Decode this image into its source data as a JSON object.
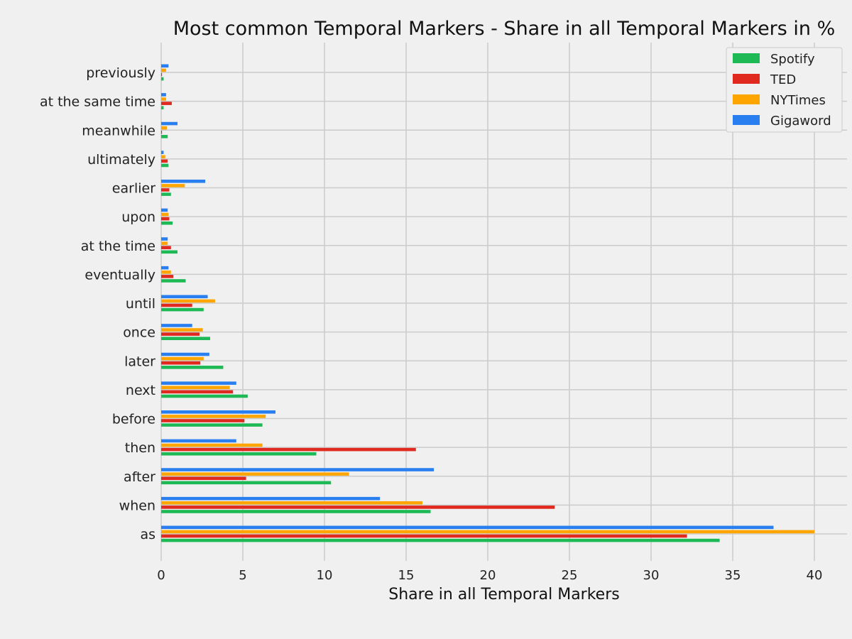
{
  "chart_data": {
    "type": "bar",
    "orientation": "horizontal",
    "title": "Most common Temporal Markers - Share in all Temporal Markers in %",
    "xlabel": "Share in all Temporal Markers",
    "ylabel": "",
    "xlim": [
      0,
      42
    ],
    "xticks": [
      0,
      5,
      10,
      15,
      20,
      25,
      30,
      35,
      40
    ],
    "grid": true,
    "legend_position": "top-right",
    "categories": [
      "as",
      "when",
      "after",
      "then",
      "before",
      "next",
      "later",
      "once",
      "until",
      "eventually",
      "at the time",
      "upon",
      "earlier",
      "ultimately",
      "meanwhile",
      "at the same time",
      "previously"
    ],
    "series": [
      {
        "name": "Spotify",
        "color": "#1db954",
        "values": [
          34.2,
          16.5,
          10.4,
          9.5,
          6.2,
          5.3,
          3.8,
          3.0,
          2.6,
          1.5,
          1.0,
          0.7,
          0.6,
          0.45,
          0.4,
          0.15,
          0.15
        ]
      },
      {
        "name": "TED",
        "color": "#e0291f",
        "values": [
          32.2,
          24.1,
          5.2,
          15.6,
          5.1,
          4.4,
          2.4,
          2.35,
          1.9,
          0.75,
          0.6,
          0.5,
          0.5,
          0.4,
          0.05,
          0.65,
          0.05
        ]
      },
      {
        "name": "NYTimes",
        "color": "#ffa500",
        "values": [
          40.0,
          16.0,
          11.5,
          6.2,
          6.4,
          4.2,
          2.6,
          2.55,
          3.3,
          0.6,
          0.4,
          0.45,
          1.45,
          0.25,
          0.35,
          0.3,
          0.3
        ]
      },
      {
        "name": "Gigaword",
        "color": "#2a7ff0",
        "values": [
          37.5,
          13.4,
          16.7,
          4.6,
          7.0,
          4.6,
          2.95,
          1.9,
          2.85,
          0.45,
          0.4,
          0.4,
          2.7,
          0.15,
          1.0,
          0.3,
          0.45
        ]
      }
    ]
  }
}
